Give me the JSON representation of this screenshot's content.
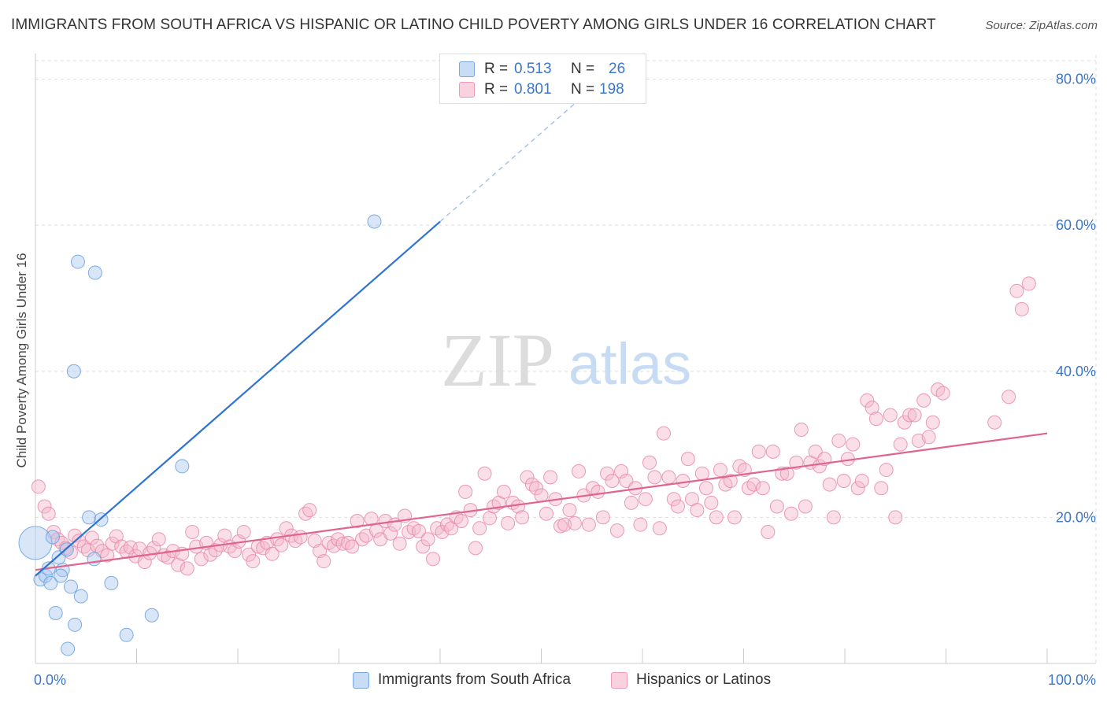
{
  "title": "IMMIGRANTS FROM SOUTH AFRICA VS HISPANIC OR LATINO CHILD POVERTY AMONG GIRLS UNDER 16 CORRELATION CHART",
  "source": "Source: ZipAtlas.com",
  "watermark": {
    "zip": "ZIP",
    "atlas": "atlas"
  },
  "legend_top": {
    "rows": [
      {
        "r_label": "R =",
        "r_value": "0.513",
        "n_label": "N =",
        "n_value": "26",
        "color": "#a8c8f0"
      },
      {
        "r_label": "R =",
        "r_value": "0.801",
        "n_label": "N =",
        "n_value": "198",
        "color": "#f5b8cb"
      }
    ]
  },
  "legend_bottom": {
    "items": [
      {
        "label": "Immigrants from South Africa",
        "color": "#a8c8f0"
      },
      {
        "label": "Hispanics or Latinos",
        "color": "#f5b8cb"
      }
    ]
  },
  "chart_data": {
    "type": "scatter",
    "title": "IMMIGRANTS FROM SOUTH AFRICA VS HISPANIC OR LATINO CHILD POVERTY AMONG GIRLS UNDER 16 CORRELATION CHART",
    "xlabel": "",
    "ylabel": "Child Poverty Among Girls Under 16",
    "xlim": [
      0,
      100
    ],
    "ylim": [
      0,
      82
    ],
    "x_tick_labels": [
      "0.0%",
      "100.0%"
    ],
    "y_ticks": [
      20,
      40,
      60,
      80
    ],
    "y_tick_labels": [
      "20.0%",
      "40.0%",
      "60.0%",
      "80.0%"
    ],
    "grid": true,
    "series": [
      {
        "name": "Immigrants from South Africa",
        "color": "#a8c8f0",
        "stroke": "#6a9fdc",
        "trend_color": "#2f73d0",
        "trend": {
          "x0": 0,
          "y0": 12.0,
          "x1": 40,
          "y1": 60.5,
          "dash_x1": 54,
          "dash_y1": 77.5
        },
        "points": [
          {
            "x": 0.0,
            "y": 16.5,
            "big": true
          },
          {
            "x": 0.5,
            "y": 11.5
          },
          {
            "x": 1.0,
            "y": 12.0
          },
          {
            "x": 1.3,
            "y": 13.0
          },
          {
            "x": 1.5,
            "y": 11.0
          },
          {
            "x": 1.7,
            "y": 17.3
          },
          {
            "x": 2.0,
            "y": 6.9
          },
          {
            "x": 2.3,
            "y": 14.5
          },
          {
            "x": 2.7,
            "y": 12.8
          },
          {
            "x": 3.1,
            "y": 15.6
          },
          {
            "x": 3.2,
            "y": 2.0
          },
          {
            "x": 3.5,
            "y": 10.5
          },
          {
            "x": 3.8,
            "y": 40.0
          },
          {
            "x": 3.9,
            "y": 5.3
          },
          {
            "x": 4.2,
            "y": 55.0
          },
          {
            "x": 4.5,
            "y": 9.2
          },
          {
            "x": 5.3,
            "y": 20.0
          },
          {
            "x": 5.8,
            "y": 14.3
          },
          {
            "x": 5.9,
            "y": 53.5
          },
          {
            "x": 6.5,
            "y": 19.7
          },
          {
            "x": 7.5,
            "y": 11.0
          },
          {
            "x": 9.0,
            "y": 3.9
          },
          {
            "x": 11.5,
            "y": 6.6
          },
          {
            "x": 14.5,
            "y": 27.0
          },
          {
            "x": 33.5,
            "y": 60.5
          },
          {
            "x": 2.5,
            "y": 12.0
          }
        ]
      },
      {
        "name": "Hispanics or Latinos",
        "color": "#f5b8cb",
        "stroke": "#e88aa6",
        "trend_color": "#e0648e",
        "trend": {
          "x0": 0,
          "y0": 12.8,
          "x1": 100,
          "y1": 31.5
        },
        "points": [
          {
            "x": 0.3,
            "y": 24.2
          },
          {
            "x": 0.9,
            "y": 21.5
          },
          {
            "x": 1.3,
            "y": 20.5
          },
          {
            "x": 1.8,
            "y": 18.0
          },
          {
            "x": 2.2,
            "y": 17.0
          },
          {
            "x": 2.6,
            "y": 16.5
          },
          {
            "x": 3.0,
            "y": 15.8
          },
          {
            "x": 3.5,
            "y": 15.2
          },
          {
            "x": 3.9,
            "y": 17.5
          },
          {
            "x": 4.3,
            "y": 16.8
          },
          {
            "x": 4.8,
            "y": 16.0
          },
          {
            "x": 5.2,
            "y": 15.5
          },
          {
            "x": 5.6,
            "y": 17.2
          },
          {
            "x": 6.1,
            "y": 16.1
          },
          {
            "x": 6.6,
            "y": 15.4
          },
          {
            "x": 7.1,
            "y": 14.8
          },
          {
            "x": 7.6,
            "y": 16.4
          },
          {
            "x": 8.0,
            "y": 17.4
          },
          {
            "x": 8.5,
            "y": 16.0
          },
          {
            "x": 9.0,
            "y": 15.3
          },
          {
            "x": 9.4,
            "y": 15.9
          },
          {
            "x": 9.9,
            "y": 14.7
          },
          {
            "x": 10.3,
            "y": 15.7
          },
          {
            "x": 10.8,
            "y": 13.9
          },
          {
            "x": 11.3,
            "y": 15.1
          },
          {
            "x": 11.7,
            "y": 15.8
          },
          {
            "x": 12.2,
            "y": 17.0
          },
          {
            "x": 12.7,
            "y": 14.8
          },
          {
            "x": 13.1,
            "y": 14.5
          },
          {
            "x": 13.6,
            "y": 15.4
          },
          {
            "x": 14.1,
            "y": 13.5
          },
          {
            "x": 14.5,
            "y": 15.0
          },
          {
            "x": 15.0,
            "y": 13.0
          },
          {
            "x": 15.5,
            "y": 18.0
          },
          {
            "x": 15.9,
            "y": 16.0
          },
          {
            "x": 16.4,
            "y": 14.3
          },
          {
            "x": 16.9,
            "y": 16.5
          },
          {
            "x": 17.3,
            "y": 14.9
          },
          {
            "x": 17.8,
            "y": 15.5
          },
          {
            "x": 18.3,
            "y": 16.2
          },
          {
            "x": 18.7,
            "y": 17.5
          },
          {
            "x": 19.2,
            "y": 16.0
          },
          {
            "x": 19.7,
            "y": 15.4
          },
          {
            "x": 20.1,
            "y": 16.7
          },
          {
            "x": 20.6,
            "y": 18.0
          },
          {
            "x": 21.1,
            "y": 14.9
          },
          {
            "x": 21.5,
            "y": 14.0
          },
          {
            "x": 22.0,
            "y": 16.0
          },
          {
            "x": 22.5,
            "y": 15.8
          },
          {
            "x": 22.9,
            "y": 16.5
          },
          {
            "x": 23.4,
            "y": 15.0
          },
          {
            "x": 23.9,
            "y": 17.0
          },
          {
            "x": 24.3,
            "y": 16.2
          },
          {
            "x": 24.8,
            "y": 18.5
          },
          {
            "x": 25.3,
            "y": 17.5
          },
          {
            "x": 25.7,
            "y": 16.8
          },
          {
            "x": 26.2,
            "y": 17.3
          },
          {
            "x": 26.7,
            "y": 20.5
          },
          {
            "x": 27.1,
            "y": 21.0
          },
          {
            "x": 27.6,
            "y": 16.8
          },
          {
            "x": 28.1,
            "y": 15.4
          },
          {
            "x": 28.5,
            "y": 14.0
          },
          {
            "x": 29.0,
            "y": 16.5
          },
          {
            "x": 29.5,
            "y": 16.1
          },
          {
            "x": 29.9,
            "y": 17.0
          },
          {
            "x": 30.4,
            "y": 16.4
          },
          {
            "x": 30.9,
            "y": 16.5
          },
          {
            "x": 31.3,
            "y": 16.0
          },
          {
            "x": 31.8,
            "y": 19.5
          },
          {
            "x": 32.3,
            "y": 17.0
          },
          {
            "x": 32.7,
            "y": 17.5
          },
          {
            "x": 33.2,
            "y": 19.8
          },
          {
            "x": 33.7,
            "y": 18.2
          },
          {
            "x": 34.1,
            "y": 17.0
          },
          {
            "x": 34.6,
            "y": 19.5
          },
          {
            "x": 35.1,
            "y": 17.8
          },
          {
            "x": 35.5,
            "y": 19.0
          },
          {
            "x": 36.0,
            "y": 16.4
          },
          {
            "x": 36.5,
            "y": 20.2
          },
          {
            "x": 36.9,
            "y": 18.0
          },
          {
            "x": 37.4,
            "y": 18.5
          },
          {
            "x": 37.9,
            "y": 18.1
          },
          {
            "x": 38.3,
            "y": 16.0
          },
          {
            "x": 38.8,
            "y": 17.0
          },
          {
            "x": 39.3,
            "y": 14.3
          },
          {
            "x": 39.7,
            "y": 18.5
          },
          {
            "x": 40.2,
            "y": 18.0
          },
          {
            "x": 40.7,
            "y": 19.0
          },
          {
            "x": 41.1,
            "y": 18.5
          },
          {
            "x": 41.6,
            "y": 20.0
          },
          {
            "x": 42.1,
            "y": 19.5
          },
          {
            "x": 42.5,
            "y": 23.5
          },
          {
            "x": 43.0,
            "y": 21.0
          },
          {
            "x": 43.5,
            "y": 15.8
          },
          {
            "x": 43.9,
            "y": 18.5
          },
          {
            "x": 44.4,
            "y": 26.0
          },
          {
            "x": 44.9,
            "y": 19.9
          },
          {
            "x": 45.3,
            "y": 21.5
          },
          {
            "x": 45.8,
            "y": 22.0
          },
          {
            "x": 46.3,
            "y": 23.5
          },
          {
            "x": 46.7,
            "y": 19.2
          },
          {
            "x": 47.2,
            "y": 22.0
          },
          {
            "x": 47.7,
            "y": 21.5
          },
          {
            "x": 48.1,
            "y": 20.0
          },
          {
            "x": 48.6,
            "y": 25.5
          },
          {
            "x": 49.1,
            "y": 24.5
          },
          {
            "x": 49.5,
            "y": 24.0
          },
          {
            "x": 50.0,
            "y": 23.0
          },
          {
            "x": 50.5,
            "y": 20.5
          },
          {
            "x": 50.9,
            "y": 25.5
          },
          {
            "x": 51.4,
            "y": 22.5
          },
          {
            "x": 51.9,
            "y": 18.8
          },
          {
            "x": 52.3,
            "y": 19.0
          },
          {
            "x": 52.8,
            "y": 21.0
          },
          {
            "x": 53.3,
            "y": 19.2
          },
          {
            "x": 53.7,
            "y": 26.3
          },
          {
            "x": 54.2,
            "y": 23.0
          },
          {
            "x": 54.7,
            "y": 19.0
          },
          {
            "x": 55.1,
            "y": 24.0
          },
          {
            "x": 55.6,
            "y": 23.5
          },
          {
            "x": 56.1,
            "y": 20.0
          },
          {
            "x": 56.5,
            "y": 26.0
          },
          {
            "x": 57.0,
            "y": 25.0
          },
          {
            "x": 57.5,
            "y": 18.2
          },
          {
            "x": 57.9,
            "y": 26.3
          },
          {
            "x": 58.4,
            "y": 25.0
          },
          {
            "x": 58.9,
            "y": 22.0
          },
          {
            "x": 59.3,
            "y": 24.0
          },
          {
            "x": 59.8,
            "y": 19.0
          },
          {
            "x": 60.3,
            "y": 22.5
          },
          {
            "x": 60.7,
            "y": 27.5
          },
          {
            "x": 61.2,
            "y": 25.5
          },
          {
            "x": 61.7,
            "y": 18.5
          },
          {
            "x": 62.1,
            "y": 31.5
          },
          {
            "x": 62.6,
            "y": 25.5
          },
          {
            "x": 63.1,
            "y": 22.5
          },
          {
            "x": 63.5,
            "y": 21.5
          },
          {
            "x": 64.0,
            "y": 25.0
          },
          {
            "x": 64.5,
            "y": 28.0
          },
          {
            "x": 64.9,
            "y": 22.5
          },
          {
            "x": 65.4,
            "y": 21.0
          },
          {
            "x": 65.9,
            "y": 26.0
          },
          {
            "x": 66.3,
            "y": 24.0
          },
          {
            "x": 66.8,
            "y": 22.0
          },
          {
            "x": 67.3,
            "y": 20.0
          },
          {
            "x": 67.7,
            "y": 26.5
          },
          {
            "x": 68.2,
            "y": 24.5
          },
          {
            "x": 68.7,
            "y": 25.0
          },
          {
            "x": 69.1,
            "y": 20.0
          },
          {
            "x": 69.6,
            "y": 27.0
          },
          {
            "x": 70.1,
            "y": 26.5
          },
          {
            "x": 70.5,
            "y": 24.0
          },
          {
            "x": 71.0,
            "y": 24.5
          },
          {
            "x": 71.5,
            "y": 29.0
          },
          {
            "x": 71.9,
            "y": 24.0
          },
          {
            "x": 72.4,
            "y": 18.0
          },
          {
            "x": 72.9,
            "y": 29.0
          },
          {
            "x": 73.3,
            "y": 21.5
          },
          {
            "x": 73.8,
            "y": 26.0
          },
          {
            "x": 74.3,
            "y": 26.0
          },
          {
            "x": 74.7,
            "y": 20.5
          },
          {
            "x": 75.2,
            "y": 27.5
          },
          {
            "x": 75.7,
            "y": 32.0
          },
          {
            "x": 76.1,
            "y": 21.5
          },
          {
            "x": 76.6,
            "y": 27.5
          },
          {
            "x": 77.1,
            "y": 29.0
          },
          {
            "x": 77.5,
            "y": 27.0
          },
          {
            "x": 78.0,
            "y": 28.0
          },
          {
            "x": 78.5,
            "y": 24.5
          },
          {
            "x": 78.9,
            "y": 20.0
          },
          {
            "x": 79.4,
            "y": 30.5
          },
          {
            "x": 79.9,
            "y": 25.0
          },
          {
            "x": 80.3,
            "y": 28.0
          },
          {
            "x": 80.8,
            "y": 30.0
          },
          {
            "x": 81.3,
            "y": 24.0
          },
          {
            "x": 81.7,
            "y": 25.0
          },
          {
            "x": 82.2,
            "y": 36.0
          },
          {
            "x": 82.7,
            "y": 35.0
          },
          {
            "x": 83.1,
            "y": 33.5
          },
          {
            "x": 83.6,
            "y": 24.0
          },
          {
            "x": 84.1,
            "y": 26.5
          },
          {
            "x": 84.5,
            "y": 34.0
          },
          {
            "x": 85.0,
            "y": 20.0
          },
          {
            "x": 85.5,
            "y": 30.0
          },
          {
            "x": 85.9,
            "y": 33.0
          },
          {
            "x": 86.4,
            "y": 34.0
          },
          {
            "x": 86.9,
            "y": 34.0
          },
          {
            "x": 87.3,
            "y": 30.5
          },
          {
            "x": 87.8,
            "y": 36.0
          },
          {
            "x": 88.3,
            "y": 31.0
          },
          {
            "x": 88.7,
            "y": 33.0
          },
          {
            "x": 89.2,
            "y": 37.5
          },
          {
            "x": 89.7,
            "y": 37.0
          },
          {
            "x": 97.0,
            "y": 51.0
          },
          {
            "x": 97.5,
            "y": 48.5
          },
          {
            "x": 98.2,
            "y": 52.0
          },
          {
            "x": 96.2,
            "y": 36.5
          },
          {
            "x": 94.8,
            "y": 33.0
          }
        ]
      }
    ]
  }
}
